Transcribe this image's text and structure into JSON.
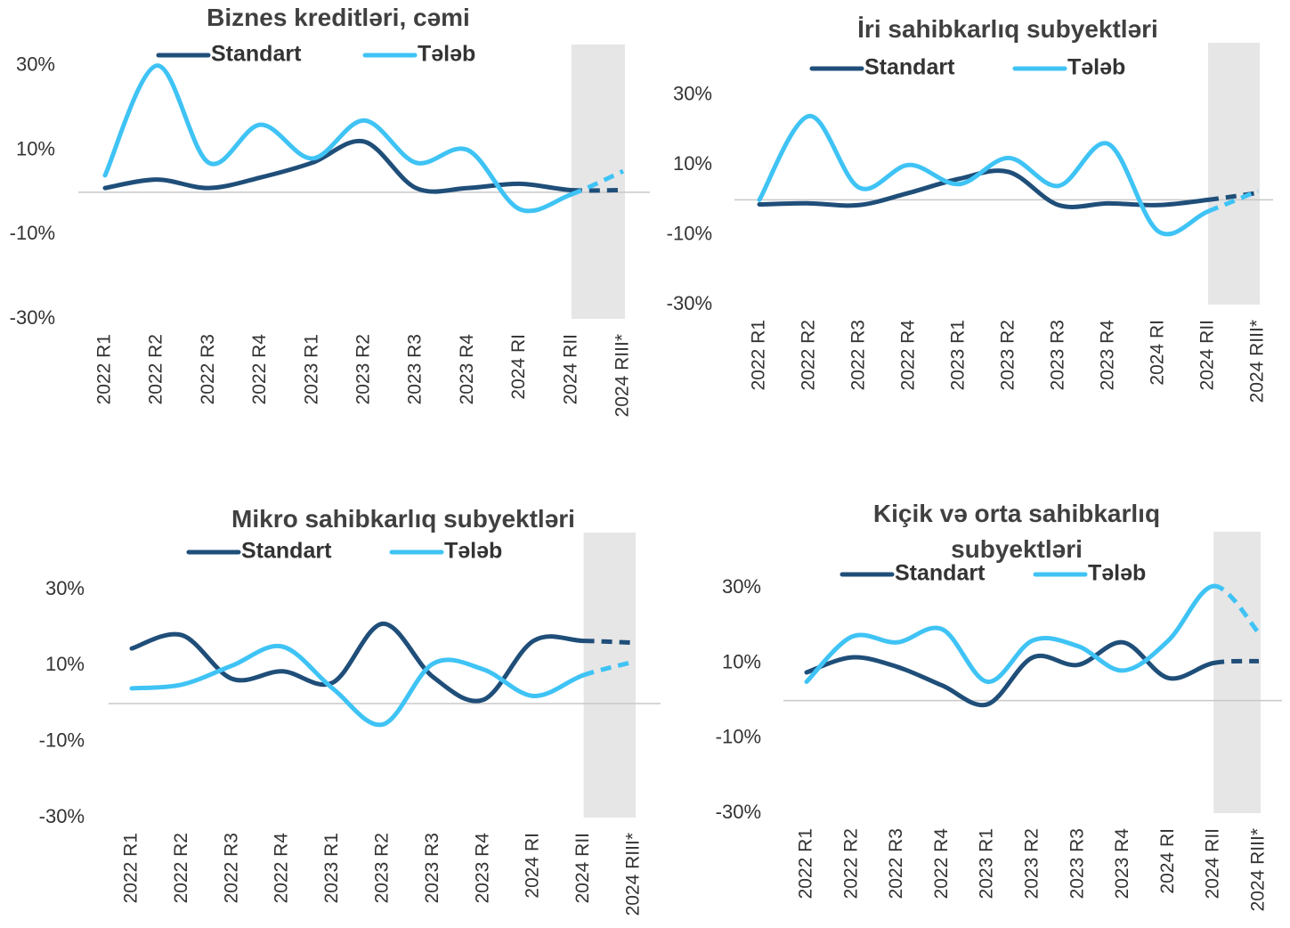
{
  "chart_data": [
    {
      "type": "line",
      "title": "Biznes kreditləri, cəmi",
      "categories": [
        "2022 R1",
        "2022 R2",
        "2022 R3",
        "2022 R4",
        "2023 R1",
        "2023 R2",
        "2023 R3",
        "2023 R4",
        "2024 RI",
        "2024 RII",
        "2024 RIII*"
      ],
      "series": [
        {
          "name": "Standart",
          "color": "#1f4e79",
          "values": [
            1,
            3,
            1,
            3.5,
            7,
            12,
            1,
            1,
            2,
            0.5,
            0.5
          ]
        },
        {
          "name": "Tələb",
          "color": "#3fc3f5",
          "values": [
            4,
            30,
            7,
            16,
            8,
            17,
            7,
            10,
            -4,
            -0.5,
            5
          ]
        }
      ],
      "ylim": [
        -30,
        35
      ],
      "yticks": [
        {
          "value": -30,
          "label": "-30%"
        },
        {
          "value": -10,
          "label": "-10%"
        },
        {
          "value": 10,
          "label": "10%"
        },
        {
          "value": 30,
          "label": "30%"
        }
      ]
    },
    {
      "type": "line",
      "title": "İri sahibkarlıq subyektləri",
      "categories": [
        "2022 R1",
        "2022 R2",
        "2022 R3",
        "2022 R4",
        "2023 R1",
        "2023 R2",
        "2023 R3",
        "2023 R4",
        "2024 RI",
        "2024 RII",
        "2024 RIII*"
      ],
      "series": [
        {
          "name": "Standart",
          "color": "#1f4e79",
          "values": [
            -1.3,
            -1,
            -1.5,
            2,
            6,
            8,
            -1.5,
            -1,
            -1.5,
            0,
            2
          ]
        },
        {
          "name": "Tələb",
          "color": "#3fc3f5",
          "values": [
            0,
            24,
            3.5,
            10,
            4.5,
            12,
            4,
            16,
            -9,
            -3.3,
            2.5
          ]
        }
      ],
      "ylim": [
        -30,
        45
      ],
      "yticks": [
        {
          "value": -30,
          "label": "-30%"
        },
        {
          "value": -10,
          "label": "-10%"
        },
        {
          "value": 10,
          "label": "10%"
        },
        {
          "value": 30,
          "label": "30%"
        }
      ]
    },
    {
      "type": "line",
      "title": "Mikro sahibkarlıq subyektləri",
      "categories": [
        "2022 R1",
        "2022 R2",
        "2022 R3",
        "2022 R4",
        "2023 R1",
        "2023 R2",
        "2023 R3",
        "2023 R4",
        "2024 RI",
        "2024 RII",
        "2024 RIII*"
      ],
      "series": [
        {
          "name": "Standart",
          "color": "#1f4e79",
          "values": [
            14.5,
            18,
            6.5,
            8.5,
            5.5,
            21,
            7,
            1,
            16.5,
            16.5,
            16
          ]
        },
        {
          "name": "Tələb",
          "color": "#3fc3f5",
          "values": [
            4,
            5,
            10,
            15,
            4,
            -5.5,
            10.5,
            9,
            2,
            7.5,
            11
          ]
        }
      ],
      "ylim": [
        -30,
        45
      ],
      "yticks": [
        {
          "value": -30,
          "label": "-30%"
        },
        {
          "value": -10,
          "label": "-10%"
        },
        {
          "value": 10,
          "label": "10%"
        },
        {
          "value": 30,
          "label": "30%"
        }
      ]
    },
    {
      "type": "line",
      "title": "Kiçik və orta sahibkarlıq subyektləri",
      "categories": [
        "2022 R1",
        "2022 R2",
        "2022 R3",
        "2022 R4",
        "2023 R1",
        "2023 R2",
        "2023 R3",
        "2023 R4",
        "2024 RI",
        "2024 RII",
        "2024 RIII*"
      ],
      "series": [
        {
          "name": "Standart",
          "color": "#1f4e79",
          "values": [
            7.5,
            11.5,
            9,
            4,
            -1,
            11.5,
            9.5,
            15.5,
            6,
            10,
            10.5
          ]
        },
        {
          "name": "Tələb",
          "color": "#3fc3f5",
          "values": [
            5,
            17,
            15.5,
            19,
            5,
            16,
            14.5,
            8,
            16,
            30.5,
            18
          ]
        }
      ],
      "ylim": [
        -30,
        45
      ],
      "yticks": [
        {
          "value": -30,
          "label": "-30%"
        },
        {
          "value": -10,
          "label": "-10%"
        },
        {
          "value": 10,
          "label": "10%"
        },
        {
          "value": 30,
          "label": "30%"
        }
      ]
    }
  ]
}
